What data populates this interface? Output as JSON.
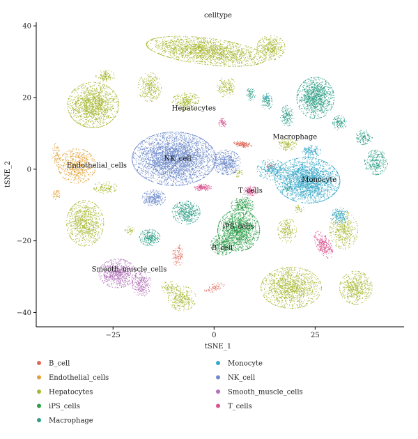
{
  "chart_data": {
    "type": "scatter",
    "title": "celltype",
    "xlabel": "tSNE_1",
    "ylabel": "tSNE_2",
    "xlim": [
      -44,
      47
    ],
    "ylim": [
      -44,
      41
    ],
    "xticks": [
      -25,
      0,
      25
    ],
    "yticks": [
      -40,
      -20,
      0,
      20,
      40
    ],
    "x_tick_labels": [
      "−25",
      "0",
      "25"
    ],
    "y_tick_labels": [
      "−40",
      "−20",
      "0",
      "20",
      "40"
    ],
    "grid": false,
    "legend_position": "bottom",
    "series": [
      {
        "name": "B_cell",
        "color": "#E0695A",
        "clusters": [
          {
            "x": 7,
            "y": 7,
            "sx": 2.0,
            "sy": 0.8,
            "rot": -10,
            "n": 140
          },
          {
            "x": -9,
            "y": -24,
            "sx": 1.2,
            "sy": 2.6,
            "rot": 0,
            "n": 110
          },
          {
            "x": 0,
            "y": -33,
            "sx": 2.2,
            "sy": 1.0,
            "rot": 20,
            "n": 70
          },
          {
            "x": 14,
            "y": 1,
            "sx": 1.0,
            "sy": 0.6,
            "rot": 0,
            "n": 30
          }
        ]
      },
      {
        "name": "Endothelial_cells",
        "color": "#E2A236",
        "clusters": [
          {
            "x": -34,
            "y": 1,
            "sx": 4.0,
            "sy": 4.2,
            "rot": 0,
            "n": 650
          },
          {
            "x": -39,
            "y": 4,
            "sx": 1.0,
            "sy": 3.0,
            "rot": 0,
            "n": 80
          },
          {
            "x": -39,
            "y": -7,
            "sx": 1.0,
            "sy": 1.2,
            "rot": 0,
            "n": 50
          }
        ]
      },
      {
        "name": "Hepatocytes",
        "color": "#A8B732",
        "clusters": [
          {
            "x": -30,
            "y": 18,
            "sx": 5.5,
            "sy": 5.5,
            "rot": 0,
            "n": 1500
          },
          {
            "x": -27,
            "y": 26,
            "sx": 2.0,
            "sy": 1.5,
            "rot": 0,
            "n": 120
          },
          {
            "x": -2,
            "y": 33,
            "sx": 13,
            "sy": 3.2,
            "rot": -8,
            "n": 2100
          },
          {
            "x": 14,
            "y": 34,
            "sx": 3.0,
            "sy": 3.0,
            "rot": 0,
            "n": 400
          },
          {
            "x": -16,
            "y": 23,
            "sx": 2.5,
            "sy": 3.5,
            "rot": 0,
            "n": 300
          },
          {
            "x": -7,
            "y": 19,
            "sx": 3.0,
            "sy": 2.2,
            "rot": 0,
            "n": 260
          },
          {
            "x": 3,
            "y": 23,
            "sx": 2.0,
            "sy": 2.5,
            "rot": 0,
            "n": 160
          },
          {
            "x": -32,
            "y": -15,
            "sx": 4.0,
            "sy": 5.5,
            "rot": 0,
            "n": 900
          },
          {
            "x": -27,
            "y": -5,
            "sx": 2.5,
            "sy": 1.5,
            "rot": 0,
            "n": 120
          },
          {
            "x": -11,
            "y": -33,
            "sx": 1.8,
            "sy": 1.5,
            "rot": 0,
            "n": 90
          },
          {
            "x": -8,
            "y": -36,
            "sx": 3.0,
            "sy": 3.0,
            "rot": 0,
            "n": 320
          },
          {
            "x": 19,
            "y": -33,
            "sx": 6.5,
            "sy": 5.0,
            "rot": 0,
            "n": 1300
          },
          {
            "x": 35,
            "y": -33,
            "sx": 3.5,
            "sy": 4.0,
            "rot": 0,
            "n": 550
          },
          {
            "x": 18,
            "y": -17,
            "sx": 2.0,
            "sy": 3.0,
            "rot": 0,
            "n": 200
          },
          {
            "x": 18,
            "y": 7,
            "sx": 2.0,
            "sy": 1.5,
            "rot": 0,
            "n": 130
          },
          {
            "x": 6,
            "y": -1,
            "sx": 1.0,
            "sy": 1.0,
            "rot": 0,
            "n": 40
          },
          {
            "x": 21,
            "y": -11,
            "sx": 1.0,
            "sy": 1.0,
            "rot": 0,
            "n": 40
          },
          {
            "x": 32,
            "y": -17,
            "sx": 3.0,
            "sy": 4.5,
            "rot": 0,
            "n": 420
          },
          {
            "x": -21,
            "y": -17,
            "sx": 1.0,
            "sy": 1.0,
            "rot": 0,
            "n": 40
          }
        ]
      },
      {
        "name": "iPS_cells",
        "color": "#2E9E4A",
        "clusters": [
          {
            "x": 6,
            "y": -17,
            "sx": 4.5,
            "sy": 5.0,
            "rot": 0,
            "n": 1400
          },
          {
            "x": 2,
            "y": -21,
            "sx": 2.5,
            "sy": 2.5,
            "rot": 0,
            "n": 300
          },
          {
            "x": 7,
            "y": -10,
            "sx": 2.5,
            "sy": 2.0,
            "rot": 0,
            "n": 250
          }
        ]
      },
      {
        "name": "Macrophage",
        "color": "#2D9E86",
        "clusters": [
          {
            "x": 25,
            "y": 20,
            "sx": 4.0,
            "sy": 5.0,
            "rot": 0,
            "n": 1100
          },
          {
            "x": 18,
            "y": 15,
            "sx": 1.5,
            "sy": 2.5,
            "rot": 0,
            "n": 160
          },
          {
            "x": 13,
            "y": 19,
            "sx": 1.2,
            "sy": 2.0,
            "rot": 0,
            "n": 110
          },
          {
            "x": 9,
            "y": 21,
            "sx": 1.0,
            "sy": 1.5,
            "rot": 0,
            "n": 70
          },
          {
            "x": 31,
            "y": 13,
            "sx": 1.5,
            "sy": 1.8,
            "rot": 0,
            "n": 120
          },
          {
            "x": 37,
            "y": 9,
            "sx": 1.8,
            "sy": 1.8,
            "rot": 0,
            "n": 130
          },
          {
            "x": 40,
            "y": 2,
            "sx": 2.5,
            "sy": 3.0,
            "rot": 0,
            "n": 300
          },
          {
            "x": -16,
            "y": -19,
            "sx": 2.2,
            "sy": 2.0,
            "rot": 0,
            "n": 260
          },
          {
            "x": -7,
            "y": -12,
            "sx": 3.0,
            "sy": 2.8,
            "rot": 0,
            "n": 420
          },
          {
            "x": 18,
            "y": -5,
            "sx": 1.0,
            "sy": 1.0,
            "rot": 0,
            "n": 40
          }
        ]
      },
      {
        "name": "Monocyte",
        "color": "#38A8C9",
        "clusters": [
          {
            "x": 23,
            "y": -3,
            "sx": 7.0,
            "sy": 5.5,
            "rot": -5,
            "n": 2400
          },
          {
            "x": 14,
            "y": 0,
            "sx": 3.0,
            "sy": 2.5,
            "rot": 0,
            "n": 300
          },
          {
            "x": 31,
            "y": -13,
            "sx": 2.0,
            "sy": 2.0,
            "rot": 0,
            "n": 180
          },
          {
            "x": 24,
            "y": 5,
            "sx": 2.0,
            "sy": 1.5,
            "rot": 0,
            "n": 150
          },
          {
            "x": 13,
            "y": 20,
            "sx": 0.7,
            "sy": 0.7,
            "rot": 0,
            "n": 25
          }
        ]
      },
      {
        "name": "NK_cell",
        "color": "#6E8BCB",
        "clusters": [
          {
            "x": -10,
            "y": 3,
            "sx": 9.0,
            "sy": 6.5,
            "rot": 0,
            "n": 3600
          },
          {
            "x": 3,
            "y": 2,
            "sx": 3.0,
            "sy": 3.0,
            "rot": 0,
            "n": 500
          },
          {
            "x": -15,
            "y": -8,
            "sx": 2.5,
            "sy": 2.0,
            "rot": 0,
            "n": 300
          }
        ]
      },
      {
        "name": "Smooth_muscle_cells",
        "color": "#B170B8",
        "clusters": [
          {
            "x": -24,
            "y": -29,
            "sx": 4.0,
            "sy": 3.5,
            "rot": 0,
            "n": 700
          },
          {
            "x": -18,
            "y": -32,
            "sx": 2.0,
            "sy": 3.0,
            "rot": 0,
            "n": 260
          }
        ]
      },
      {
        "name": "T_cells",
        "color": "#D9538F",
        "clusters": [
          {
            "x": -3,
            "y": -5,
            "sx": 2.0,
            "sy": 0.8,
            "rot": 0,
            "n": 140
          },
          {
            "x": 9,
            "y": -6,
            "sx": 1.5,
            "sy": 1.2,
            "rot": 0,
            "n": 120
          },
          {
            "x": 27,
            "y": -21,
            "sx": 1.5,
            "sy": 3.5,
            "rot": 25,
            "n": 280
          },
          {
            "x": 2,
            "y": 13,
            "sx": 0.8,
            "sy": 1.2,
            "rot": 0,
            "n": 60
          }
        ]
      }
    ],
    "annotations": [
      {
        "text": "Hepatocytes",
        "x": -5,
        "y": 17
      },
      {
        "text": "Endothelial_cells",
        "x": -29,
        "y": 1
      },
      {
        "text": "NK_cell",
        "x": -9,
        "y": 3
      },
      {
        "text": "Macrophage",
        "x": 20,
        "y": 9
      },
      {
        "text": "Monocyte",
        "x": 26,
        "y": -3
      },
      {
        "text": "T_cells",
        "x": 9,
        "y": -6
      },
      {
        "text": "iPS_cells",
        "x": 6,
        "y": -16
      },
      {
        "text": "B_cell",
        "x": 2,
        "y": -22
      },
      {
        "text": "Smooth_muscle_cells",
        "x": -21,
        "y": -28
      }
    ]
  }
}
